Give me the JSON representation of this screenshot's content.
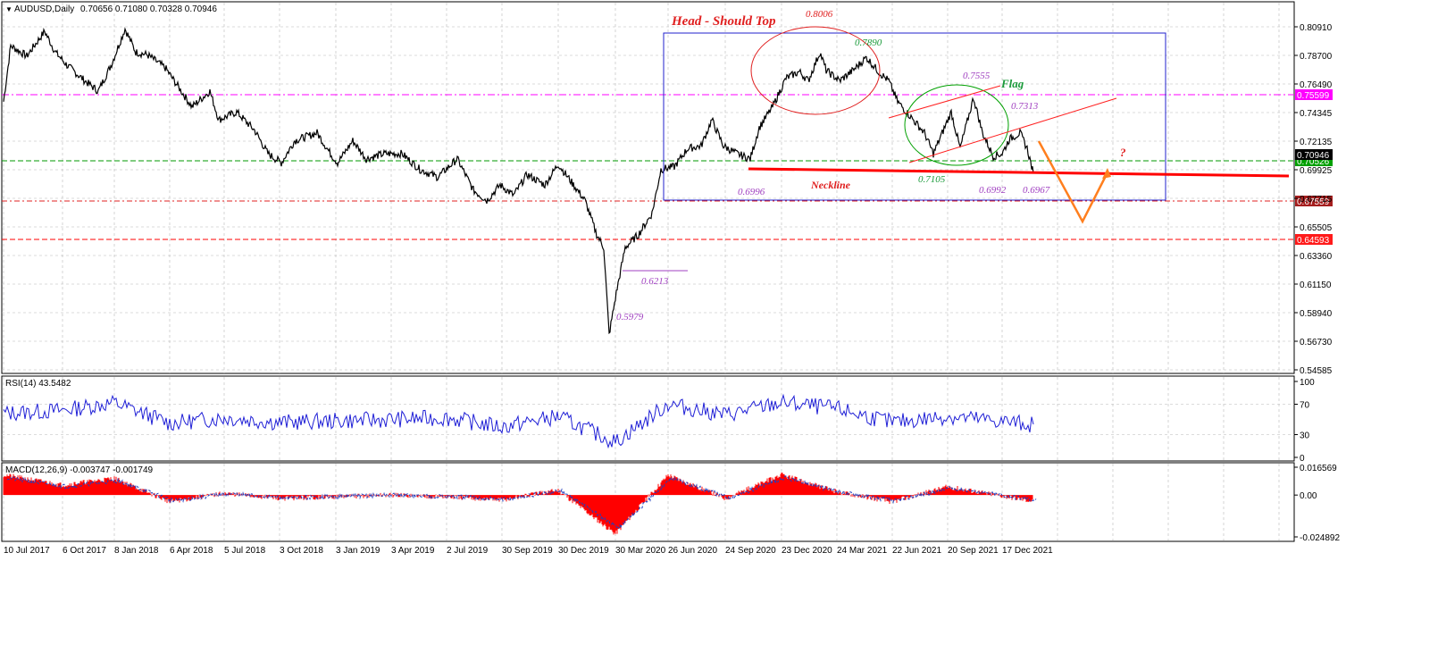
{
  "header": {
    "symbol": "AUDUSD,Daily",
    "ohlc": "0.70656 0.71080 0.70328 0.70946"
  },
  "colors": {
    "price": "#000000",
    "rsi": "#1f1fd6",
    "macd": "#ff0000",
    "grid": "#b7b7b7",
    "magenta": "#ff00ff",
    "red": "#ff0000",
    "green": "#00a000",
    "blue": "#2222cc",
    "orange": "#ff7f1e",
    "anno_purple": "#a040c0",
    "anno_green": "#1a9a3a",
    "anno_red": "#e02020"
  },
  "chart_data": [
    {
      "type": "line",
      "title": "AUDUSD,Daily",
      "ohlc_last": [
        0.70656,
        0.7108,
        0.70328,
        0.70946
      ],
      "y_ticks": [
        "0.80910",
        "0.78700",
        "0.76490",
        "0.74345",
        "0.72135",
        "0.69925",
        "0.67715",
        "0.65505",
        "0.63360",
        "0.61150",
        "0.58940",
        "0.56730",
        "0.54585"
      ],
      "ylim": [
        0.5459,
        0.8095
      ],
      "x_ticks": [
        "10 Jul 2017",
        "6 Oct 2017",
        "8 Jan 2018",
        "6 Apr 2018",
        "5 Jul 2018",
        "3 Oct 2018",
        "3 Jan 2019",
        "3 Apr 2019",
        "2 Jul 2019",
        "30 Sep 2019",
        "30 Dec 2019",
        "30 Mar 2020",
        "26 Jun 2020",
        "24 Sep 2020",
        "23 Dec 2020",
        "24 Mar 2021",
        "22 Jun 2021",
        "20 Sep 2021",
        "17 Dec 2021"
      ],
      "series": [
        {
          "x": [
            "10 Jul 2017",
            "6 Oct 2017",
            "8 Jan 2018",
            "6 Apr 2018",
            "5 Jul 2018",
            "3 Oct 2018",
            "3 Jan 2019",
            "3 Apr 2019",
            "2 Jul 2019",
            "30 Sep 2019",
            "30 Dec 2019",
            "30 Mar 2020",
            "26 Jun 2020",
            "24 Sep 2020",
            "23 Dec 2020",
            "24 Mar 2021",
            "22 Jun 2021",
            "20 Sep 2021",
            "17 Dec 2021"
          ],
          "values": [
            0.765,
            0.782,
            0.808,
            0.76,
            0.74,
            0.708,
            0.705,
            0.712,
            0.7,
            0.677,
            0.697,
            0.61,
            0.69,
            0.712,
            0.758,
            0.765,
            0.74,
            0.725,
            0.705
          ]
        }
      ],
      "h_levels": [
        {
          "value": 0.75599,
          "label": "0.75599",
          "style": "magenta"
        },
        {
          "value": 0.70526,
          "label": "0.70526",
          "style": "green"
        },
        {
          "value": 0.70946,
          "label": "0.70946",
          "style": "current"
        },
        {
          "value": 0.67559,
          "label": "0.67559",
          "style": "dark-red"
        },
        {
          "value": 0.64593,
          "label": "0.64593",
          "style": "red"
        }
      ],
      "annotations": [
        "Head - Should Top",
        "0.8006",
        "0.7890",
        "0.7555",
        "Flag",
        "0.7313",
        "?",
        "Neckline",
        "0.6996",
        "0.7105",
        "0.6992",
        "0.6967",
        "0.6213",
        "0.5979"
      ]
    },
    {
      "type": "line",
      "title": "RSI(14) 43.5482",
      "y_ticks": [
        "100",
        "70",
        "30",
        "0"
      ],
      "ylim": [
        0,
        100
      ],
      "series": [
        {
          "x_index": [
            0,
            1,
            2,
            3,
            4,
            5,
            6,
            7,
            8,
            9,
            10,
            11,
            12,
            13,
            14,
            15,
            16,
            17,
            18
          ],
          "values": [
            58,
            62,
            72,
            45,
            52,
            46,
            48,
            50,
            52,
            40,
            54,
            20,
            70,
            56,
            72,
            64,
            46,
            54,
            43.5
          ]
        }
      ]
    },
    {
      "type": "bar",
      "title": "MACD(12,26,9) -0.003747 -0.001749",
      "y_ticks": [
        "0.016569",
        "0.00",
        "-0.024892"
      ],
      "ylim": [
        -0.024892,
        0.016569
      ],
      "series": [
        {
          "x_index": [
            0,
            1,
            2,
            3,
            4,
            5,
            6,
            7,
            8,
            9,
            10,
            11,
            12,
            13,
            14,
            15,
            16,
            17,
            18
          ],
          "values": [
            0.012,
            0.006,
            0.01,
            -0.004,
            0.001,
            -0.002,
            -0.001,
            0.0,
            -0.001,
            -0.003,
            0.003,
            -0.023,
            0.012,
            -0.002,
            0.012,
            0.002,
            -0.004,
            0.005,
            -0.0037
          ]
        }
      ]
    }
  ]
}
